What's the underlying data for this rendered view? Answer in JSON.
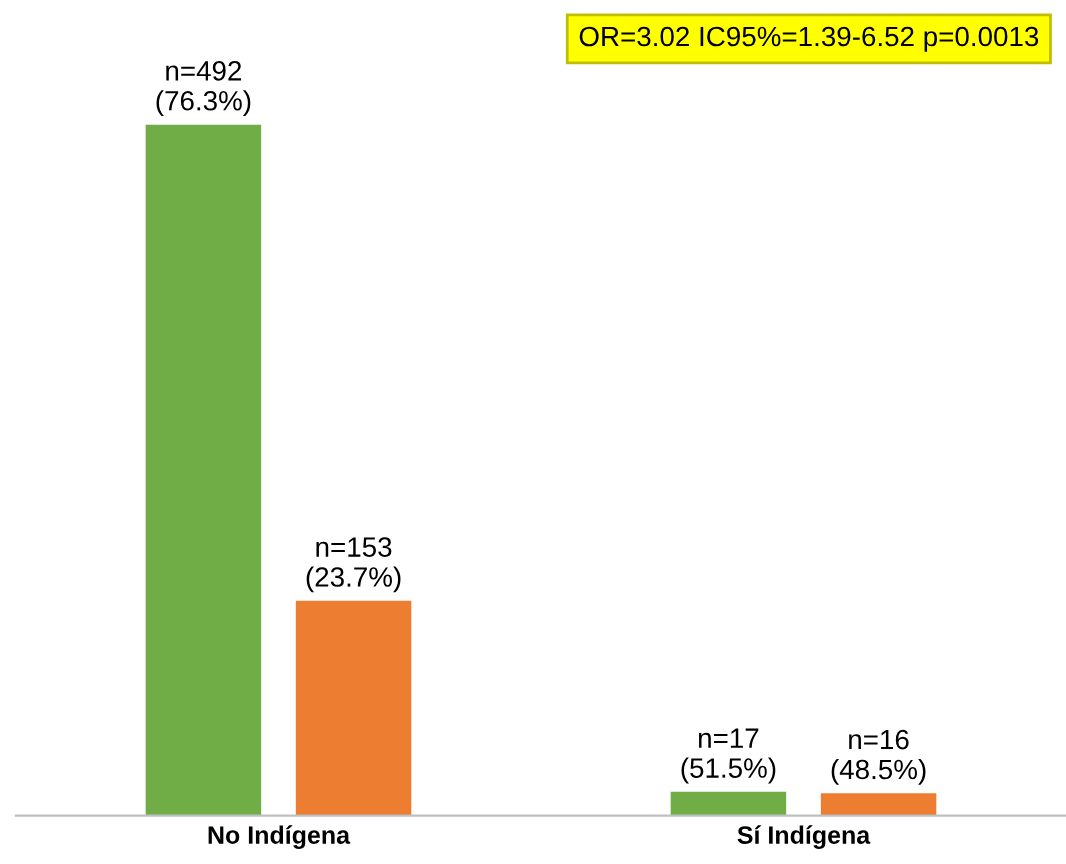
{
  "chart_data": {
    "type": "bar",
    "categories": [
      "No Indígena",
      "Sí Indígena"
    ],
    "series": [
      {
        "color": "#70ad47",
        "values": [
          492,
          17
        ],
        "value_labels": [
          "n=492\n(76.3%)",
          "n=17\n(51.5%)"
        ]
      },
      {
        "color": "#ed7d31",
        "values": [
          153,
          16
        ],
        "value_labels": [
          "n=153\n(23.7%)",
          "n=16\n(48.5%)"
        ]
      }
    ],
    "annotations": [
      "OR=3.02 IC95%=1.39-6.52 p=0.0013"
    ],
    "grid": false,
    "legend": false
  }
}
